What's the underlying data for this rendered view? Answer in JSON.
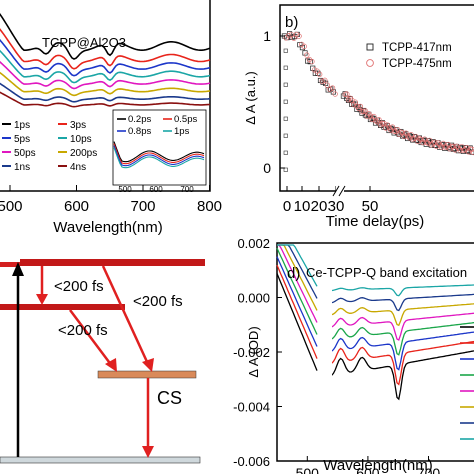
{
  "chart_data": [
    {
      "panel": "a",
      "type": "line",
      "annotation": "TCPP@Al2O3",
      "xlabel": "Wavelength(nm)",
      "xticks": [
        "500",
        "600",
        "700",
        "800"
      ],
      "xlim": [
        470,
        800
      ],
      "legend": [
        "1ps",
        "3ps",
        "5ps",
        "10ps",
        "50ps",
        "200ps",
        "1ns",
        "4ns"
      ],
      "legend_colors": [
        "#000000",
        "#e8241b",
        "#1c36c9",
        "#1ba6a6",
        "#e017c0",
        "#c8a800",
        "#1b3a8c",
        "#8a1010"
      ],
      "inset_legend": [
        "0.2ps",
        "0.5ps",
        "0.8ps",
        "1ps"
      ],
      "inset_colors": [
        "#000000",
        "#e8241b",
        "#1c36c9",
        "#1ba6a6"
      ],
      "inset_xticks": [
        "500",
        "600",
        "700"
      ]
    },
    {
      "panel": "b",
      "type": "scatter",
      "label": "b)",
      "xlabel": "Time delay(ps)",
      "ylabel": "Δ A (a.u.)",
      "xticks": [
        "0",
        "10",
        "20",
        "30",
        "50"
      ],
      "yticks": [
        "0",
        "1"
      ],
      "ylim": [
        0,
        1
      ],
      "series": [
        {
          "name": "TCPP-417nm",
          "color": "#222222",
          "marker": "square"
        },
        {
          "name": "TCPP-475nm",
          "color": "#e07070",
          "marker": "circle"
        }
      ]
    },
    {
      "panel": "c",
      "type": "diagram",
      "labels": [
        "<200 fs",
        "<200 fs",
        "<200 fs",
        "CS"
      ]
    },
    {
      "panel": "d",
      "type": "line",
      "label": "d)",
      "title": "Ce-TCPP-Q band excitation",
      "xlabel": "Wavelength(nm)",
      "ylabel": "Δ A (OD)",
      "xticks": [
        "500",
        "600",
        "700"
      ],
      "yticks": [
        "0.002",
        "0.000",
        "-0.002",
        "-0.004",
        "-0.006"
      ],
      "ylim": [
        -0.006,
        0.002
      ],
      "xlim": [
        450,
        780
      ],
      "colors": [
        "#000000",
        "#e8241b",
        "#1c36c9",
        "#1ba64a",
        "#e017c0",
        "#c8a800",
        "#1b3a8c",
        "#1ba6a6"
      ]
    }
  ]
}
